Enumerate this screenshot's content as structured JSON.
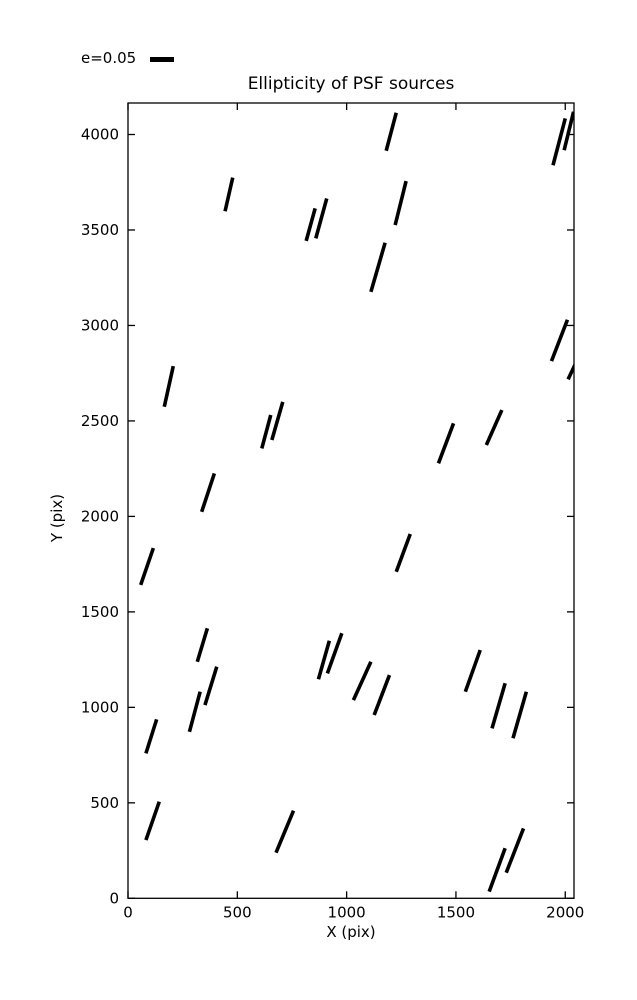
{
  "figure": {
    "title": "Ellipticity of PSF sources",
    "legend_label": "e=0.05",
    "xlabel": "X (pix)",
    "ylabel": "Y (pix)"
  },
  "chart_data": {
    "type": "scatter",
    "marker": "ellipticity-stick",
    "title": "Ellipticity of PSF sources",
    "xlabel": "X (pix)",
    "ylabel": "Y (pix)",
    "xlim": [
      0,
      2040
    ],
    "ylim": [
      0,
      4165
    ],
    "xticks": [
      0,
      500,
      1000,
      1500,
      2000
    ],
    "yticks": [
      0,
      500,
      1000,
      1500,
      2000,
      2500,
      3000,
      3500,
      4000
    ],
    "grid": false,
    "legend": {
      "label": "e=0.05",
      "position": "upper-left-outside"
    },
    "stick_color": "#000000",
    "axis_color": "#000000",
    "background_color": "#ffffff",
    "segments_note": "each segment is [x1,y1,x2,y2] in data units (pix)",
    "segments": [
      [
        479,
        3774,
        444,
        3598
      ],
      [
        909,
        3665,
        859,
        3456
      ],
      [
        856,
        3613,
        815,
        3443
      ],
      [
        1227,
        4114,
        1181,
        3915
      ],
      [
        1272,
        3756,
        1222,
        3526
      ],
      [
        1176,
        3433,
        1111,
        3176
      ],
      [
        2000,
        4084,
        1944,
        3839
      ],
      [
        2038,
        4119,
        1995,
        3918
      ],
      [
        207,
        2787,
        166,
        2574
      ],
      [
        708,
        2600,
        658,
        2400
      ],
      [
        653,
        2531,
        612,
        2356
      ],
      [
        395,
        2225,
        337,
        2024
      ],
      [
        116,
        1834,
        58,
        1641
      ],
      [
        2010,
        3030,
        1937,
        2813
      ],
      [
        2051,
        2810,
        2013,
        2718
      ],
      [
        1489,
        2487,
        1420,
        2278
      ],
      [
        1710,
        2557,
        1639,
        2374
      ],
      [
        363,
        1414,
        317,
        1239
      ],
      [
        406,
        1213,
        352,
        1012
      ],
      [
        330,
        1082,
        281,
        872
      ],
      [
        131,
        937,
        82,
        759
      ],
      [
        978,
        1388,
        912,
        1178
      ],
      [
        921,
        1349,
        871,
        1147
      ],
      [
        1291,
        1908,
        1227,
        1710
      ],
      [
        1111,
        1239,
        1031,
        1038
      ],
      [
        1196,
        1169,
        1126,
        960
      ],
      [
        1611,
        1300,
        1543,
        1082
      ],
      [
        1725,
        1126,
        1665,
        890
      ],
      [
        1822,
        1082,
        1761,
        838
      ],
      [
        143,
        506,
        82,
        305
      ],
      [
        757,
        459,
        677,
        239
      ],
      [
        1725,
        262,
        1652,
        35
      ],
      [
        1809,
        366,
        1730,
        134
      ]
    ]
  }
}
